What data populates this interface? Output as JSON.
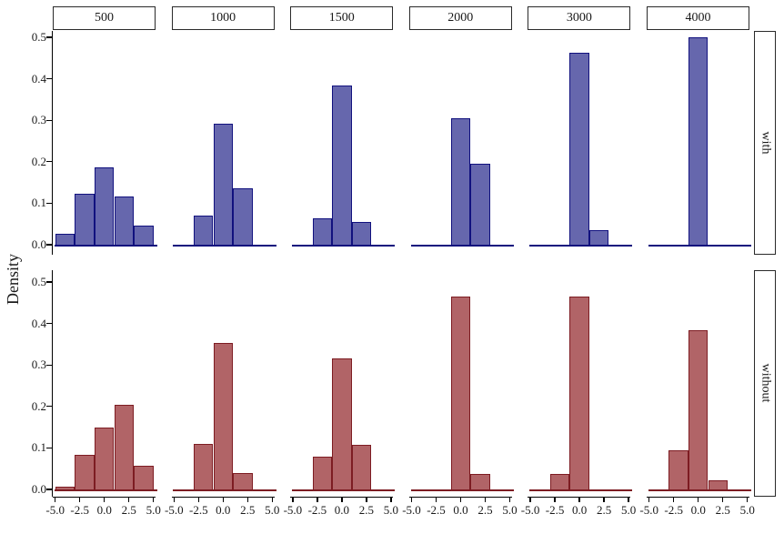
{
  "chart_data": {
    "type": "bar",
    "subtype": "faceted-density-histogram",
    "title": "",
    "xlabel": "",
    "ylabel": "Density",
    "facet_columns": [
      "500",
      "1000",
      "1500",
      "2000",
      "3000",
      "4000"
    ],
    "facet_rows": [
      "with",
      "without"
    ],
    "xlim": [
      -5,
      5
    ],
    "ylim": [
      0.0,
      0.5
    ],
    "x_ticks": [
      -5.0,
      -2.5,
      0.0,
      2.5,
      5.0
    ],
    "x_tick_labels": [
      "-5.0",
      "-2.5",
      "0.0",
      "2.5",
      "5.0"
    ],
    "y_ticks": [
      0.0,
      0.1,
      0.2,
      0.3,
      0.4,
      0.5
    ],
    "y_tick_labels": [
      "0.0",
      "0.1",
      "0.2",
      "0.3",
      "0.4",
      "0.5"
    ],
    "bin_width": 2,
    "grid": "off",
    "legend": "none",
    "colors": {
      "with_fill": "#6667ad",
      "with_stroke": "#11117e",
      "without_fill": "#b16467",
      "without_stroke": "#7d1c22",
      "axis": "#000000",
      "strip_border": "#2a2a2a",
      "text": "#1a1a1a"
    },
    "series": [
      {
        "name": "with",
        "fill": "#6667ad",
        "stroke": "#11117e",
        "facets": [
          {
            "column": "500",
            "bin_centers": [
              -4,
              -2,
              0,
              2,
              4
            ],
            "densities": [
              0.027,
              0.122,
              0.187,
              0.117,
              0.047
            ]
          },
          {
            "column": "1000",
            "bin_centers": [
              -2,
              0,
              2
            ],
            "densities": [
              0.071,
              0.291,
              0.135
            ]
          },
          {
            "column": "1500",
            "bin_centers": [
              -2,
              0,
              2
            ],
            "densities": [
              0.063,
              0.383,
              0.055
            ]
          },
          {
            "column": "2000",
            "bin_centers": [
              0,
              2
            ],
            "densities": [
              0.304,
              0.196
            ]
          },
          {
            "column": "3000",
            "bin_centers": [
              0,
              2
            ],
            "densities": [
              0.463,
              0.036
            ]
          },
          {
            "column": "4000",
            "bin_centers": [
              0
            ],
            "densities": [
              0.5
            ]
          }
        ]
      },
      {
        "name": "without",
        "fill": "#b16467",
        "stroke": "#7d1c22",
        "facets": [
          {
            "column": "500",
            "bin_centers": [
              -4,
              -2,
              0,
              2,
              4
            ],
            "densities": [
              0.007,
              0.084,
              0.15,
              0.203,
              0.058
            ]
          },
          {
            "column": "1000",
            "bin_centers": [
              -2,
              0,
              2
            ],
            "densities": [
              0.11,
              0.352,
              0.04
            ]
          },
          {
            "column": "1500",
            "bin_centers": [
              -2,
              0,
              2
            ],
            "densities": [
              0.079,
              0.315,
              0.107
            ]
          },
          {
            "column": "2000",
            "bin_centers": [
              0,
              2
            ],
            "densities": [
              0.465,
              0.037
            ]
          },
          {
            "column": "3000",
            "bin_centers": [
              -2,
              0
            ],
            "densities": [
              0.038,
              0.466
            ]
          },
          {
            "column": "4000",
            "bin_centers": [
              -2,
              0,
              2
            ],
            "densities": [
              0.094,
              0.384,
              0.023
            ]
          }
        ]
      }
    ]
  }
}
